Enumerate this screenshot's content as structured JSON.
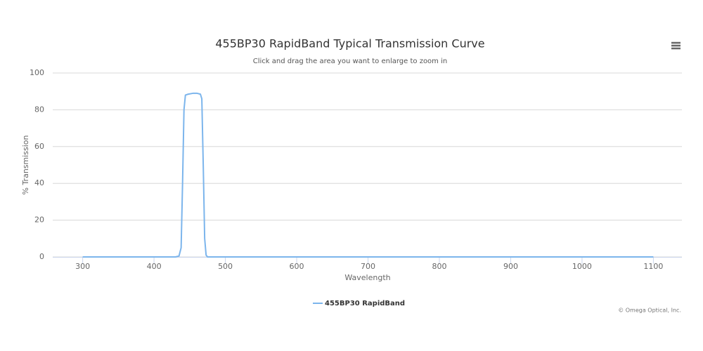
{
  "chart_data": {
    "type": "line",
    "title": "455BP30 RapidBand Typical Transmission Curve",
    "subtitle": "Click and drag the area you want to enlarge to zoom in",
    "x_label": "Wavelength",
    "y_label": "% Transmission",
    "credits": "© Omega Optical, Inc.",
    "x": [
      300,
      430,
      435,
      438,
      440,
      442,
      444,
      448,
      455,
      460,
      465,
      467,
      469,
      471,
      473,
      475,
      1100
    ],
    "series": [
      {
        "name": "455BP30 RapidBand",
        "color": "#7cb5ec",
        "values": [
          0,
          0,
          0.5,
          5,
          40,
          80,
          88,
          88.5,
          89,
          89,
          88.5,
          86,
          50,
          10,
          1,
          0,
          0
        ]
      }
    ],
    "xlim": [
      258,
      1140
    ],
    "ylim": [
      0,
      100
    ],
    "xticks": [
      300,
      400,
      500,
      600,
      700,
      800,
      900,
      1000,
      1100
    ],
    "yticks": [
      0,
      20,
      40,
      60,
      80,
      100
    ],
    "grid": true
  }
}
